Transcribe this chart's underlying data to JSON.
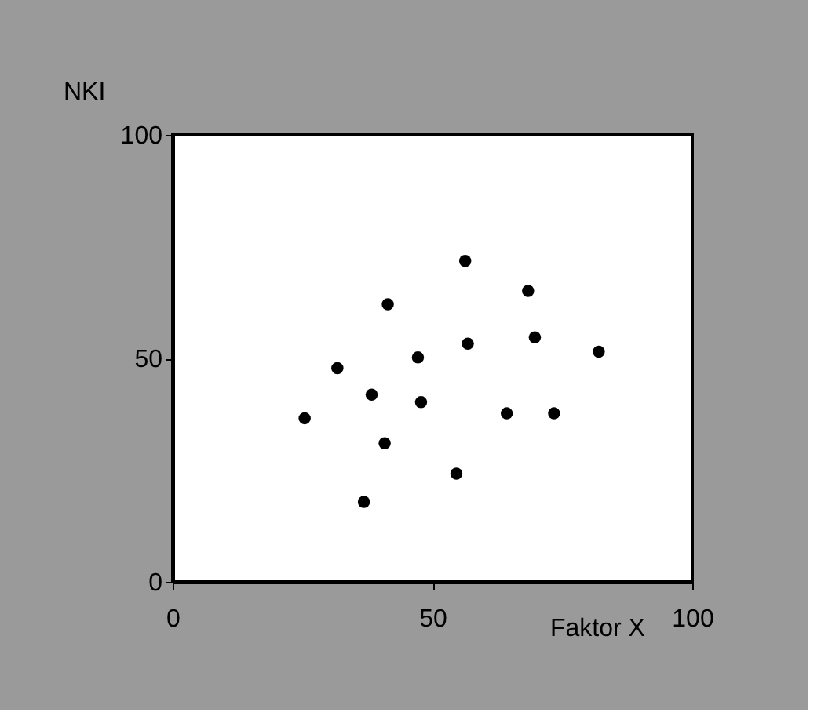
{
  "chart_data": {
    "type": "scatter",
    "xlabel": "Faktor X",
    "ylabel": "NKI",
    "x": [
      56.3,
      68.4,
      41.4,
      56.8,
      69.7,
      82.0,
      47.2,
      31.7,
      38.3,
      47.8,
      25.4,
      64.3,
      73.4,
      40.8,
      54.6,
      36.8
    ],
    "series": [
      {
        "color": "#000000",
        "values": [
          71.8,
          65.1,
          62.1,
          53.3,
          54.7,
          51.5,
          50.2,
          47.8,
          41.9,
          40.2,
          36.6,
          37.7,
          37.7,
          31.0,
          24.2,
          17.9
        ]
      }
    ],
    "xlim": [
      0,
      100
    ],
    "ylim": [
      0,
      100
    ],
    "xticks": [
      0,
      50,
      100
    ],
    "yticks": [
      0,
      50,
      100
    ],
    "marker": "circle",
    "grid": false,
    "legend": false
  }
}
